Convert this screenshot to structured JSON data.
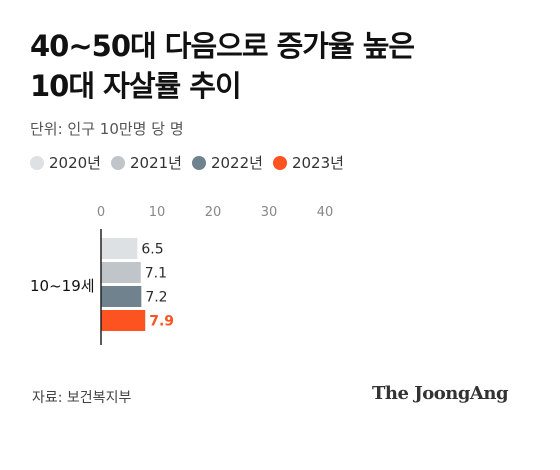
{
  "title_lines": [
    "40~50대 다음으로 증가율 높은",
    "10대 자살률 추이"
  ],
  "unit_label": "단위: 인구 10만명 당 명",
  "source": "자료: 보건복지부",
  "logo": "The JoongAng",
  "colors": {
    "s2020": "#dde1e4",
    "s2021": "#bfc5c9",
    "s2022": "#6f828e",
    "s2023": "#fd5321",
    "axis": "#222222",
    "tick": "#888888"
  },
  "chart_data": {
    "type": "bar",
    "orientation": "horizontal",
    "categories": [
      "10~19세"
    ],
    "series": [
      {
        "name": "2020년",
        "values": [
          6.5
        ],
        "label": "6.5"
      },
      {
        "name": "2021년",
        "values": [
          7.1
        ],
        "label": "7.1"
      },
      {
        "name": "2022년",
        "values": [
          7.2
        ],
        "label": "7.2"
      },
      {
        "name": "2023년",
        "values": [
          7.9
        ],
        "label": "7.9"
      }
    ],
    "xlim": [
      0,
      40
    ],
    "xticks": [
      "0",
      "10",
      "20",
      "30",
      "40"
    ],
    "legend_position": "top",
    "grid": false
  }
}
